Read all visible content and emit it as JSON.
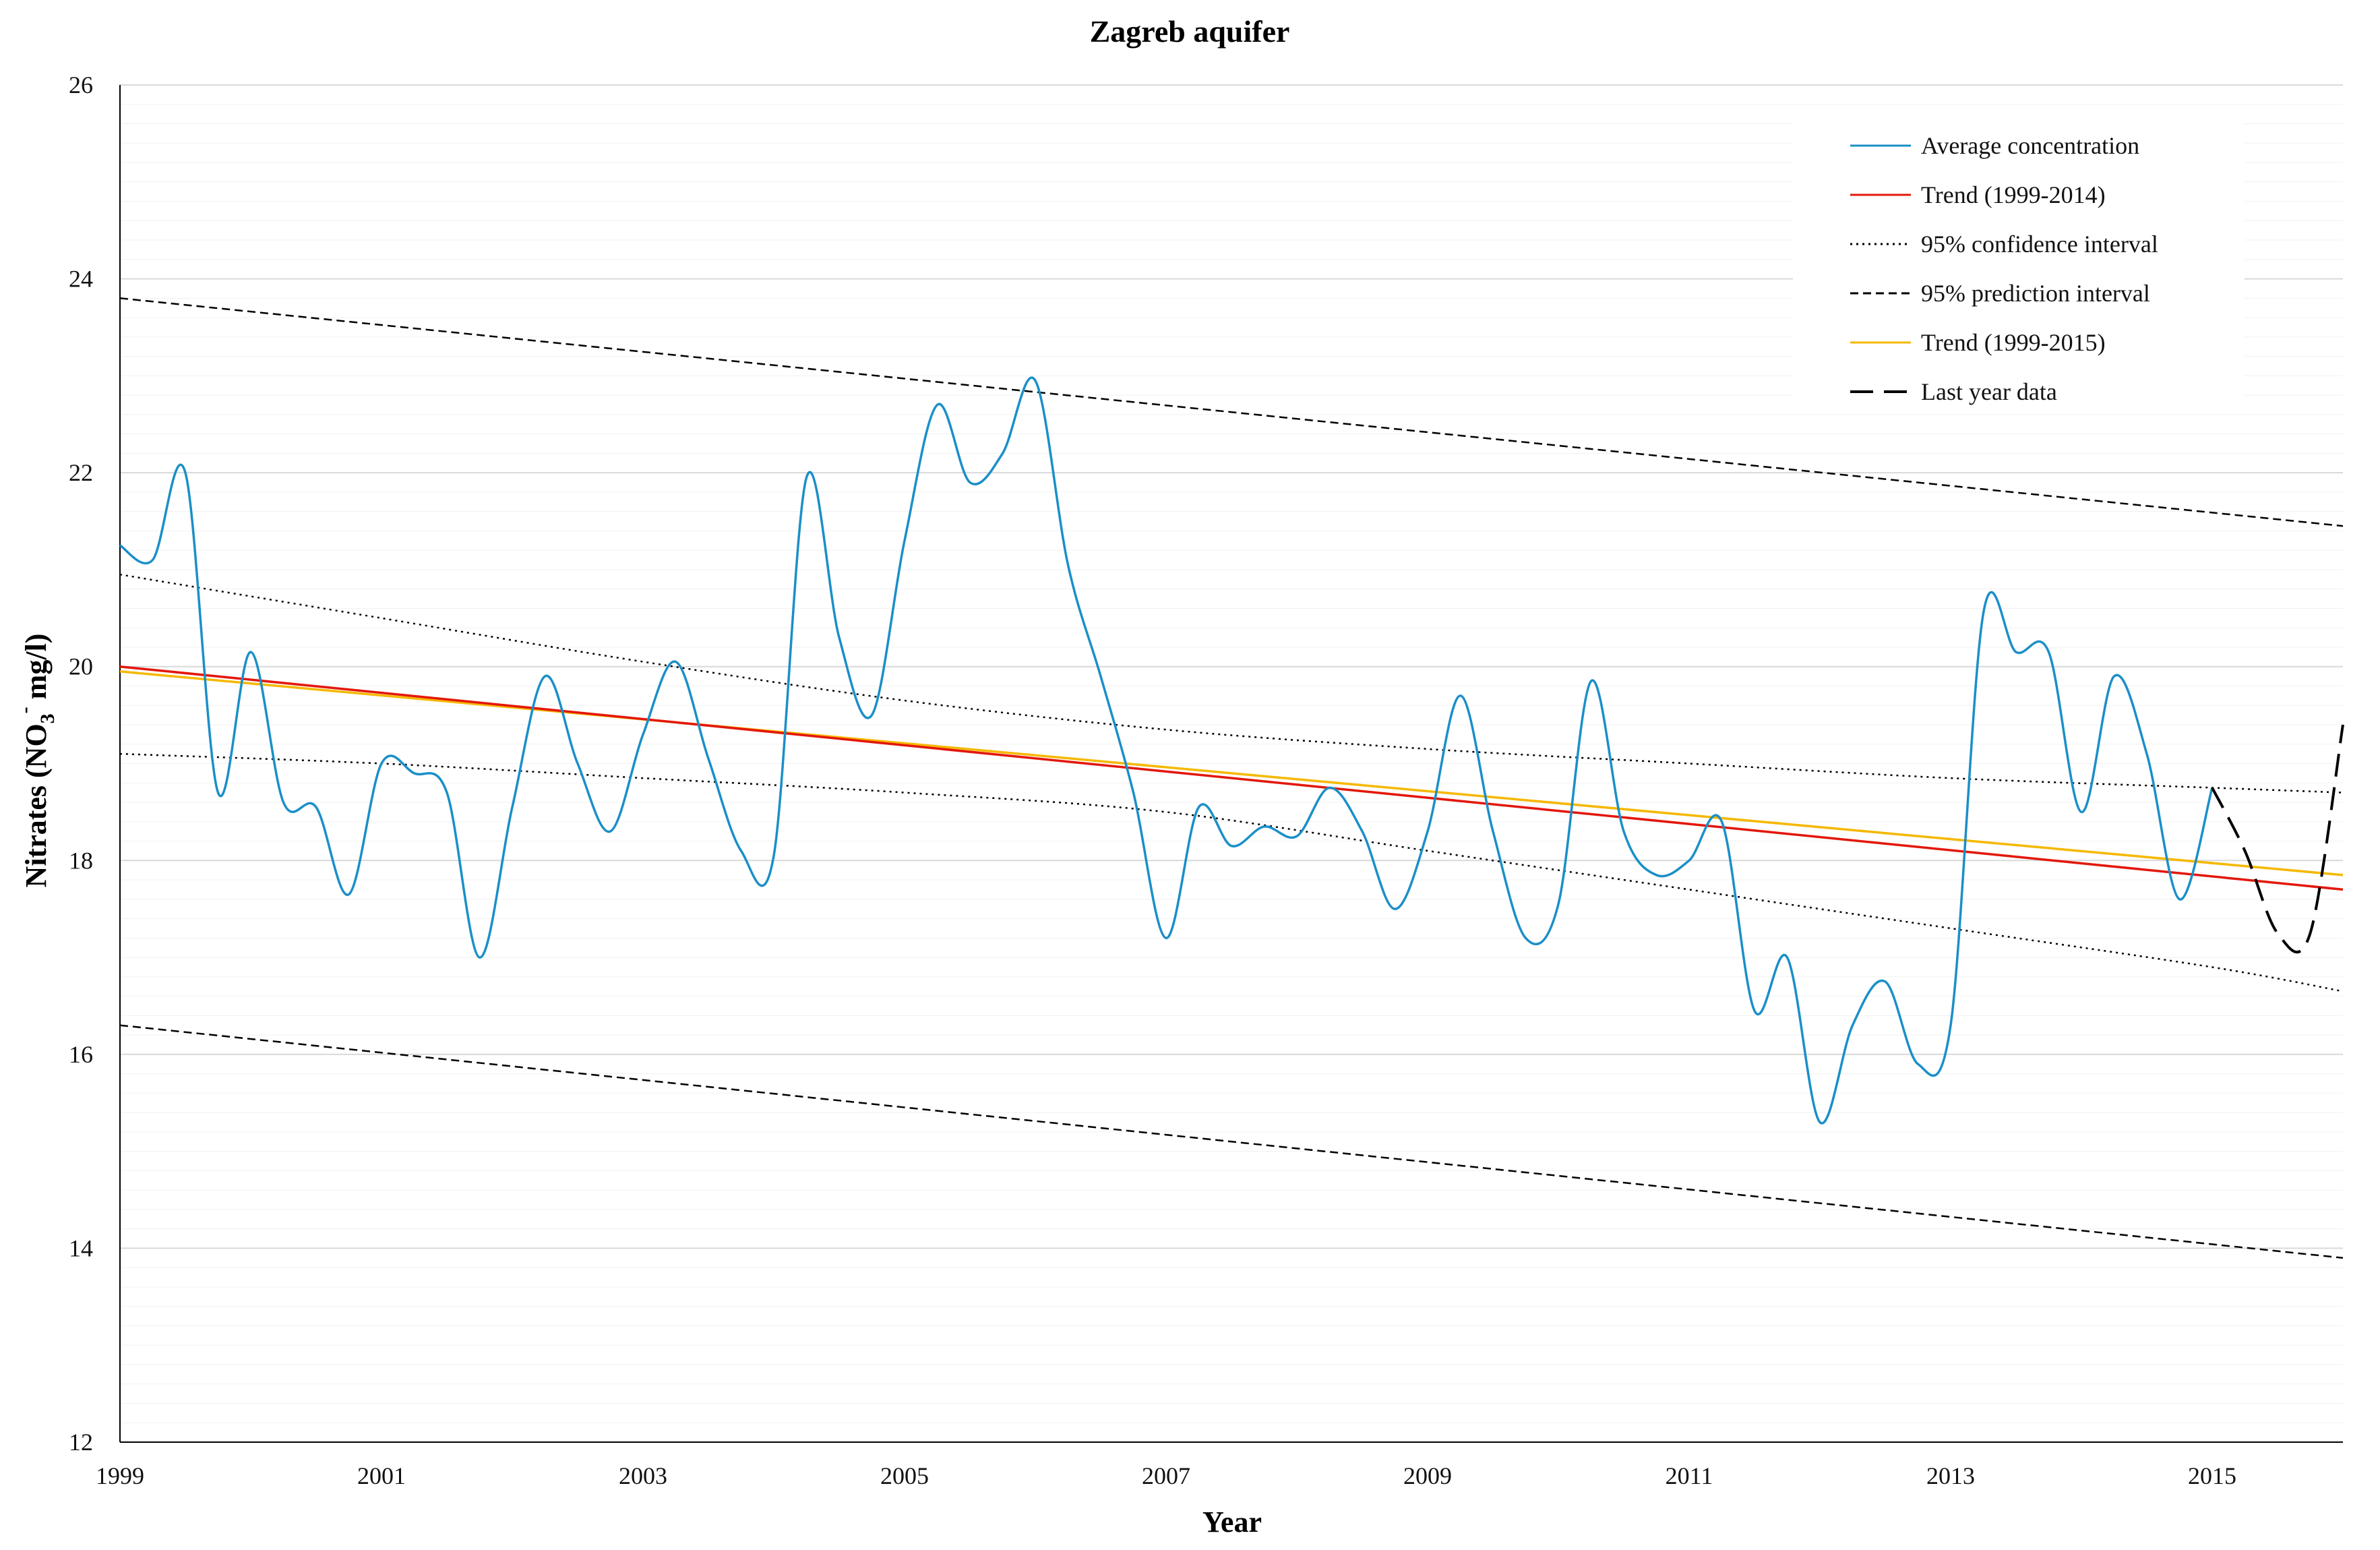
{
  "chart_data": {
    "type": "line",
    "title": "Zagreb aquifer",
    "xlabel": "Year",
    "ylabel_main": "Nitrates (NO",
    "ylabel_sub": "3",
    "ylabel_sup": "-",
    "ylabel_tail": " mg/l)",
    "xlim": [
      1999,
      2016
    ],
    "ylim": [
      12,
      26
    ],
    "x_ticks": [
      1999,
      2001,
      2003,
      2005,
      2007,
      2009,
      2011,
      2013,
      2015
    ],
    "x_tick_labels": [
      "1999",
      "2001",
      "2003",
      "2005",
      "2007",
      "2009",
      "2011",
      "2013",
      "2015"
    ],
    "y_ticks": [
      12,
      14,
      16,
      18,
      20,
      22,
      24,
      26
    ],
    "y_tick_labels": [
      "12",
      "14",
      "16",
      "18",
      "20",
      "22",
      "24",
      "26"
    ],
    "grid": true,
    "legend_position": "top-right",
    "colors": {
      "average": "#1a8fc8",
      "trend_2014": "#e3170a",
      "trend_2015": "#f5b800",
      "intervals": "#000000"
    },
    "series": [
      {
        "name": "Average concentration",
        "style": "solid",
        "x": [
          1999.0,
          1999.25,
          1999.5,
          1999.75,
          2000.0,
          2000.25,
          2000.5,
          2000.75,
          2001.0,
          2001.25,
          2001.5,
          2001.75,
          2002.0,
          2002.25,
          2002.5,
          2002.75,
          2003.0,
          2003.25,
          2003.5,
          2003.75,
          2004.0,
          2004.25,
          2004.5,
          2004.75,
          2005.0,
          2005.25,
          2005.5,
          2005.75,
          2006.0,
          2006.25,
          2006.5,
          2006.75,
          2007.0,
          2007.25,
          2007.5,
          2007.75,
          2008.0,
          2008.25,
          2008.5,
          2008.75,
          2009.0,
          2009.25,
          2009.5,
          2009.75,
          2010.0,
          2010.25,
          2010.5,
          2010.75,
          2011.0,
          2011.25,
          2011.5,
          2011.75,
          2012.0,
          2012.25,
          2012.5,
          2012.75,
          2013.0,
          2013.25,
          2013.5,
          2013.75,
          2014.0,
          2014.25,
          2014.5,
          2014.75,
          2015.0
        ],
        "values": [
          21.25,
          21.1,
          22.0,
          18.7,
          20.15,
          18.6,
          18.55,
          17.65,
          19.0,
          18.9,
          18.7,
          17.0,
          18.55,
          19.9,
          19.0,
          18.3,
          19.3,
          20.05,
          19.05,
          18.1,
          18.05,
          21.95,
          20.3,
          19.5,
          21.3,
          22.7,
          21.9,
          22.2,
          22.95,
          21.05,
          19.9,
          18.7,
          17.2,
          18.55,
          18.15,
          18.35,
          18.25,
          18.75,
          18.3,
          17.5,
          18.3,
          19.7,
          18.3,
          17.2,
          17.55,
          19.85,
          18.3,
          17.85,
          18.0,
          18.4,
          16.45,
          17.0,
          15.3,
          16.3,
          16.75,
          15.9,
          16.3,
          20.55,
          20.15,
          20.15,
          18.5,
          19.9,
          19.1,
          17.6,
          18.75
        ]
      },
      {
        "name": "Last year data",
        "style": "longdash",
        "x": [
          2015.0,
          2015.25,
          2015.5,
          2015.75,
          2016.0
        ],
        "values": [
          18.75,
          18.1,
          17.25,
          17.25,
          19.4
        ]
      },
      {
        "name": "Trend (1999-2014)",
        "style": "solid",
        "x": [
          1999.0,
          2016.0
        ],
        "values": [
          20.0,
          17.7
        ]
      },
      {
        "name": "Trend (1999-2015)",
        "style": "solid",
        "x": [
          1999.0,
          2016.0
        ],
        "values": [
          19.95,
          17.85
        ]
      },
      {
        "name": "95% confidence interval (upper)",
        "style": "dotted",
        "x": [
          1999.0,
          2001.0,
          2003.0,
          2005.0,
          2007.0,
          2009.0,
          2011.0,
          2013.0,
          2015.0,
          2016.0
        ],
        "values": [
          20.95,
          20.5,
          20.05,
          19.65,
          19.35,
          19.15,
          19.0,
          18.85,
          18.75,
          18.7
        ]
      },
      {
        "name": "95% confidence interval (lower)",
        "style": "dotted",
        "x": [
          1999.0,
          2001.0,
          2003.0,
          2005.0,
          2007.0,
          2009.0,
          2011.0,
          2013.0,
          2015.0,
          2016.0
        ],
        "values": [
          19.1,
          19.0,
          18.85,
          18.7,
          18.5,
          18.1,
          17.7,
          17.3,
          16.9,
          16.65
        ]
      },
      {
        "name": "95% prediction interval (upper)",
        "style": "shortdash",
        "x": [
          1999.0,
          2016.0
        ],
        "values": [
          23.8,
          21.45
        ]
      },
      {
        "name": "95% prediction interval (lower)",
        "style": "shortdash",
        "x": [
          1999.0,
          2016.0
        ],
        "values": [
          16.3,
          13.9
        ]
      }
    ],
    "legend": [
      {
        "label": "Average concentration",
        "style": "solid",
        "color": "#1a8fc8"
      },
      {
        "label": "Trend (1999-2014)",
        "style": "solid",
        "color": "#e3170a"
      },
      {
        "label": "95% confidence interval",
        "style": "dotted",
        "color": "#000000"
      },
      {
        "label": "95% prediction interval",
        "style": "shortdash",
        "color": "#000000"
      },
      {
        "label": "Trend (1999-2015)",
        "style": "solid",
        "color": "#f5b800"
      },
      {
        "label": "Last year data",
        "style": "longdash",
        "color": "#000000"
      }
    ]
  }
}
